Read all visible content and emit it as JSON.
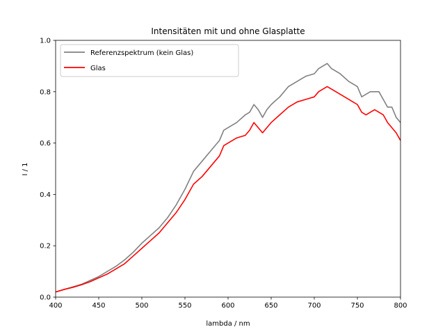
{
  "chart_data": {
    "type": "line",
    "title": "Intensitäten mit und ohne Glasplatte",
    "xlabel": "lambda / nm",
    "ylabel": "I / 1",
    "xlim": [
      400,
      800
    ],
    "ylim": [
      0.0,
      1.0
    ],
    "xticks": [
      "400",
      "450",
      "500",
      "550",
      "600",
      "650",
      "700",
      "750",
      "800"
    ],
    "yticks": [
      "0.0",
      "0.2",
      "0.4",
      "0.6",
      "0.8",
      "1.0"
    ],
    "grid": false,
    "legend_position": "top-left",
    "series": [
      {
        "name": "Referenzspektrum (kein Glas)",
        "color": "#808080",
        "x": [
          400,
          410,
          420,
          430,
          440,
          450,
          460,
          470,
          480,
          490,
          500,
          510,
          520,
          530,
          540,
          550,
          560,
          570,
          580,
          590,
          595,
          600,
          610,
          620,
          625,
          630,
          635,
          640,
          645,
          650,
          660,
          670,
          680,
          690,
          700,
          705,
          710,
          715,
          720,
          730,
          740,
          750,
          755,
          760,
          765,
          770,
          775,
          780,
          785,
          790,
          795,
          800
        ],
        "y": [
          0.02,
          0.03,
          0.04,
          0.05,
          0.065,
          0.08,
          0.1,
          0.12,
          0.145,
          0.175,
          0.21,
          0.24,
          0.27,
          0.31,
          0.36,
          0.42,
          0.49,
          0.53,
          0.57,
          0.61,
          0.65,
          0.66,
          0.68,
          0.71,
          0.72,
          0.75,
          0.73,
          0.7,
          0.73,
          0.75,
          0.78,
          0.82,
          0.84,
          0.86,
          0.87,
          0.89,
          0.9,
          0.91,
          0.89,
          0.87,
          0.84,
          0.82,
          0.78,
          0.79,
          0.8,
          0.8,
          0.8,
          0.77,
          0.74,
          0.74,
          0.7,
          0.68
        ]
      },
      {
        "name": "Glas",
        "color": "#ff0000",
        "x": [
          400,
          410,
          420,
          430,
          440,
          450,
          460,
          470,
          480,
          490,
          500,
          510,
          520,
          530,
          540,
          550,
          560,
          570,
          580,
          590,
          595,
          600,
          610,
          620,
          625,
          630,
          635,
          640,
          645,
          650,
          660,
          670,
          680,
          690,
          700,
          705,
          710,
          715,
          720,
          730,
          740,
          750,
          755,
          760,
          765,
          770,
          775,
          780,
          785,
          790,
          795,
          800
        ],
        "y": [
          0.02,
          0.03,
          0.038,
          0.048,
          0.06,
          0.075,
          0.09,
          0.11,
          0.13,
          0.16,
          0.19,
          0.22,
          0.25,
          0.29,
          0.33,
          0.38,
          0.44,
          0.47,
          0.51,
          0.55,
          0.59,
          0.6,
          0.62,
          0.63,
          0.65,
          0.68,
          0.66,
          0.64,
          0.66,
          0.68,
          0.71,
          0.74,
          0.76,
          0.77,
          0.78,
          0.8,
          0.81,
          0.82,
          0.81,
          0.79,
          0.77,
          0.75,
          0.72,
          0.71,
          0.72,
          0.73,
          0.72,
          0.71,
          0.68,
          0.66,
          0.64,
          0.61
        ]
      }
    ]
  }
}
